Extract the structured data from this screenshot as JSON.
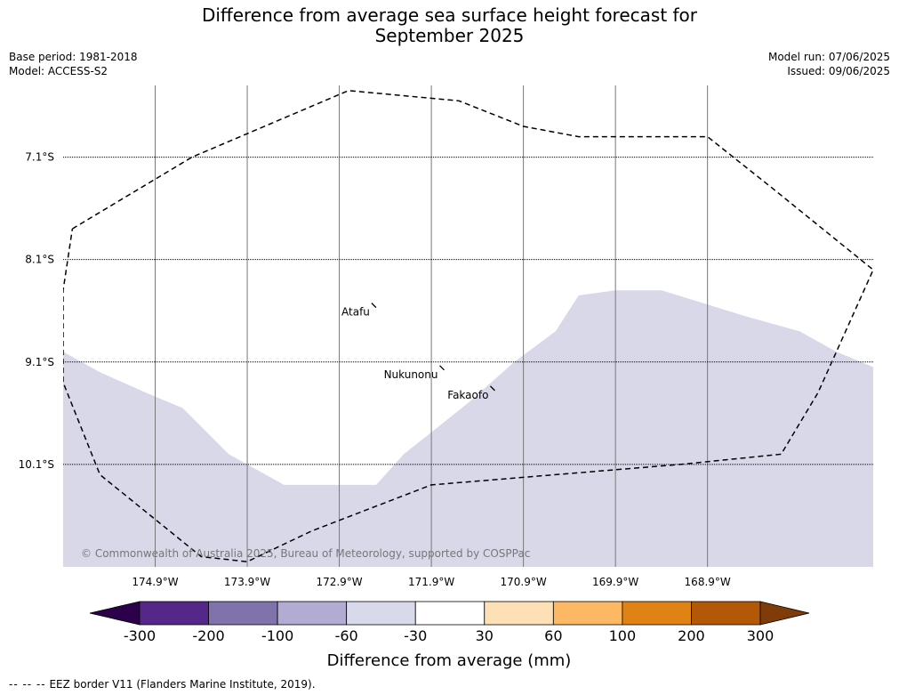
{
  "title_line1": "Difference from average sea surface height forecast for",
  "title_line2": "September 2025",
  "meta_left": {
    "base_period": "Base period: 1981-2018",
    "model": "Model: ACCESS-S2"
  },
  "meta_right": {
    "model_run": "Model run: 07/06/2025",
    "issued": "Issued: 09/06/2025"
  },
  "copyright": "© Commonwealth of Australia 2025, Bureau of Meteorology, supported by COSPPac",
  "footer": {
    "dashes": "-- -- --",
    "text": "EEZ border V11 (Flanders Marine Institute, 2019)."
  },
  "colors": {
    "fill_minus60_to_minus30": "#d8d8e9",
    "grid_line": "#777777",
    "eez_line": "#000000"
  },
  "chart_data": {
    "type": "heatmap",
    "title": "Difference from average sea surface height forecast for September 2025",
    "xlim": [
      -175.9,
      -167.1
    ],
    "ylim": [
      -11.1,
      -6.4
    ],
    "lon_ticks": [
      {
        "value": -174.9,
        "label": "174.9°W"
      },
      {
        "value": -173.9,
        "label": "173.9°W"
      },
      {
        "value": -172.9,
        "label": "172.9°W"
      },
      {
        "value": -171.9,
        "label": "171.9°W"
      },
      {
        "value": -170.9,
        "label": "170.9°W"
      },
      {
        "value": -169.9,
        "label": "169.9°W"
      },
      {
        "value": -168.9,
        "label": "168.9°W"
      }
    ],
    "lat_ticks": [
      {
        "value": -7.1,
        "label": "7.1°S"
      },
      {
        "value": -8.1,
        "label": "8.1°S"
      },
      {
        "value": -9.1,
        "label": "9.1°S"
      },
      {
        "value": -10.1,
        "label": "10.1°S"
      }
    ],
    "places": [
      {
        "name": "Atafu",
        "lon": -172.52,
        "lat": -8.56
      },
      {
        "name": "Nukunonu",
        "lon": -171.78,
        "lat": -9.17
      },
      {
        "name": "Fakaofo",
        "lon": -171.23,
        "lat": -9.37
      }
    ],
    "anomaly_region": {
      "category": "-60 to -30",
      "polygon": [
        [
          -175.9,
          -9.0
        ],
        [
          -175.5,
          -9.2
        ],
        [
          -175.0,
          -9.4
        ],
        [
          -174.6,
          -9.55
        ],
        [
          -174.1,
          -10.0
        ],
        [
          -173.5,
          -10.3
        ],
        [
          -172.5,
          -10.3
        ],
        [
          -172.2,
          -10.0
        ],
        [
          -171.5,
          -9.5
        ],
        [
          -171.0,
          -9.1
        ],
        [
          -170.55,
          -8.8
        ],
        [
          -170.3,
          -8.45
        ],
        [
          -169.9,
          -8.4
        ],
        [
          -169.4,
          -8.4
        ],
        [
          -168.5,
          -8.65
        ],
        [
          -167.9,
          -8.8
        ],
        [
          -167.5,
          -9.0
        ],
        [
          -167.1,
          -9.15
        ],
        [
          -167.1,
          -11.1
        ],
        [
          -175.9,
          -11.1
        ]
      ]
    },
    "eez_border": [
      [
        -175.8,
        -7.8
      ],
      [
        -174.5,
        -7.1
      ],
      [
        -172.8,
        -6.45
      ],
      [
        -171.6,
        -6.55
      ],
      [
        -170.9,
        -6.8
      ],
      [
        -170.3,
        -6.9
      ],
      [
        -169.3,
        -6.9
      ],
      [
        -168.9,
        -6.9
      ],
      [
        -168.2,
        -7.4
      ],
      [
        -167.1,
        -8.2
      ],
      [
        -167.7,
        -9.4
      ],
      [
        -168.1,
        -10.0
      ],
      [
        -169.2,
        -10.1
      ],
      [
        -171.9,
        -10.3
      ],
      [
        -173.2,
        -10.75
      ],
      [
        -173.9,
        -11.05
      ],
      [
        -174.4,
        -11.0
      ],
      [
        -175.5,
        -10.2
      ],
      [
        -175.9,
        -9.3
      ],
      [
        -175.9,
        -8.4
      ],
      [
        -175.8,
        -7.8
      ]
    ],
    "colorbar": {
      "label": "Difference from average (mm)",
      "tick_labels": [
        "-300",
        "-200",
        "-100",
        "-60",
        "-30",
        "30",
        "60",
        "100",
        "200",
        "300"
      ],
      "colors": [
        "#2d004b",
        "#542788",
        "#8073ac",
        "#b2abd2",
        "#d8daeb",
        "#ffffff",
        "#fee0b6",
        "#fdb863",
        "#e08214",
        "#b35806",
        "#7f3b08"
      ]
    }
  }
}
